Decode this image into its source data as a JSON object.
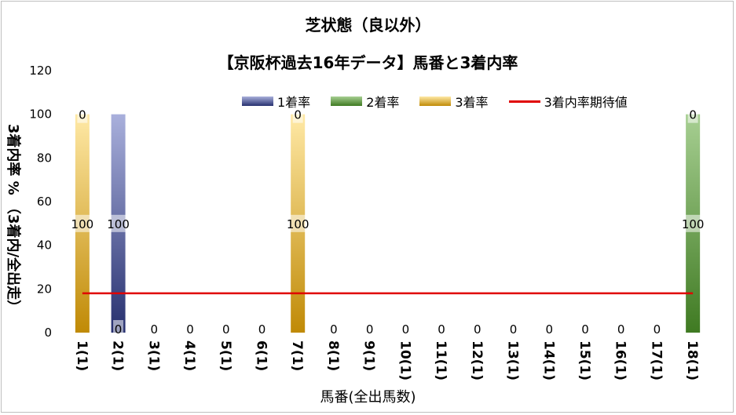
{
  "title": "芝状態（良以外）",
  "subtitle": "【京阪杯過去16年データ】馬番と3着内率",
  "legend": {
    "s1": "1着率",
    "s2": "2着率",
    "s3": "3着率",
    "line": "3着内率期待値"
  },
  "colors": {
    "s1": "#2e3a8c",
    "s2": "#4e8a2e",
    "s3": "#c8960c",
    "line": "#e00000"
  },
  "chart_data": {
    "type": "bar",
    "title": "芝状態（良以外）",
    "subtitle": "【京阪杯過去16年データ】馬番と3着内率",
    "xlabel": "馬番(全出馬数)",
    "ylabel": "3着内率 % （3着内/全出走）",
    "ylim": [
      0,
      120
    ],
    "yticks": [
      0,
      20,
      40,
      60,
      80,
      100,
      120
    ],
    "categories": [
      "1(1)",
      "2(1)",
      "3(1)",
      "4(1)",
      "5(1)",
      "6(1)",
      "7(1)",
      "8(1)",
      "9(1)",
      "10(1)",
      "11(1)",
      "12(1)",
      "13(1)",
      "14(1)",
      "15(1)",
      "16(1)",
      "17(1)",
      "18(1)"
    ],
    "series": [
      {
        "name": "1着率",
        "values": [
          0,
          100,
          0,
          0,
          0,
          0,
          0,
          0,
          0,
          0,
          0,
          0,
          0,
          0,
          0,
          0,
          0,
          0
        ]
      },
      {
        "name": "2着率",
        "values": [
          0,
          0,
          0,
          0,
          0,
          0,
          0,
          0,
          0,
          0,
          0,
          0,
          0,
          0,
          0,
          0,
          0,
          100
        ]
      },
      {
        "name": "3着率",
        "values": [
          100,
          0,
          0,
          0,
          0,
          0,
          100,
          0,
          0,
          0,
          0,
          0,
          0,
          0,
          0,
          0,
          0,
          0
        ]
      }
    ],
    "line": {
      "name": "3着内率期待値",
      "value": 18
    },
    "data_labels": {
      "bottom": [
        "",
        "0",
        "0",
        "0",
        "0",
        "0",
        "",
        "0",
        "0",
        "0",
        "0",
        "0",
        "0",
        "0",
        "0",
        "0",
        "0",
        ""
      ],
      "middle": [
        "100",
        "100",
        "",
        "",
        "",
        "",
        "100",
        "",
        "",
        "",
        "",
        "",
        "",
        "",
        "",
        "",
        "",
        "100"
      ],
      "top": [
        "0",
        "",
        "",
        "",
        "",
        "",
        "0",
        "",
        "",
        "",
        "",
        "",
        "",
        "",
        "",
        "",
        "",
        "0"
      ]
    },
    "grid": false,
    "legend_position": "top"
  }
}
